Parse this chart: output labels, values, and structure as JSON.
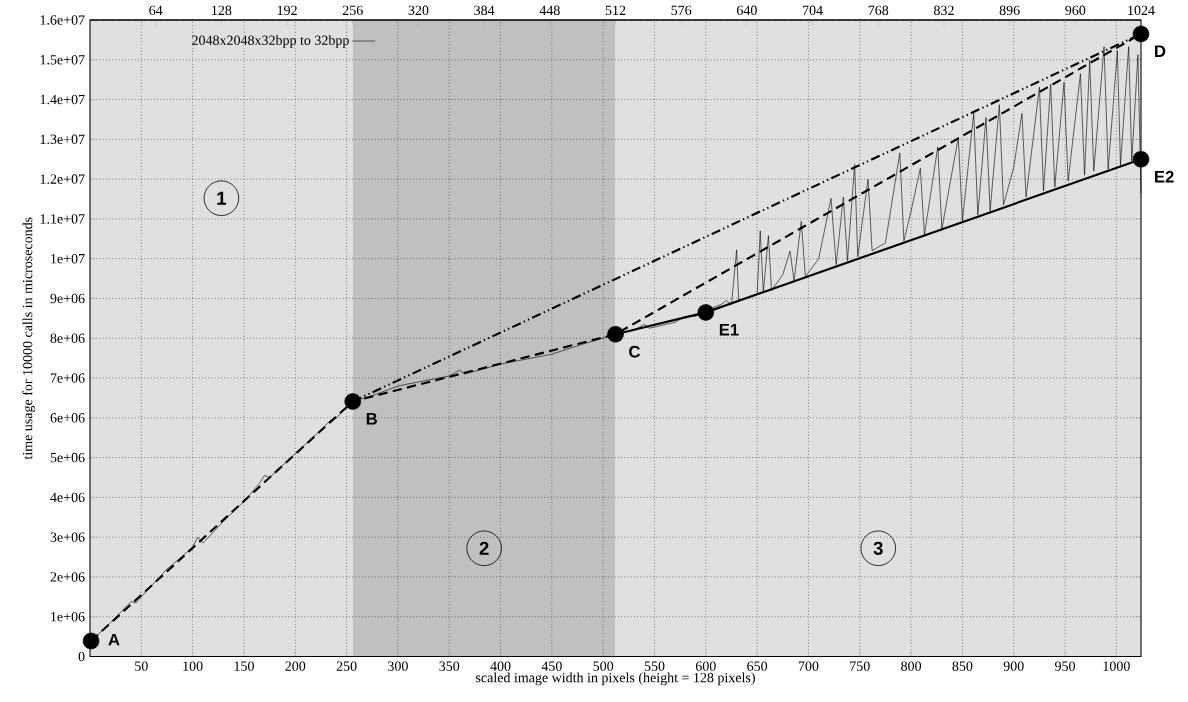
{
  "chart_data": {
    "type": "line",
    "xlabel": "scaled image width in pixels (height = 128 pixels)",
    "ylabel": "time usage for 10000 calls in microseconds",
    "xlim": [
      0,
      1024
    ],
    "xticks": [
      50,
      100,
      150,
      200,
      250,
      300,
      350,
      400,
      450,
      500,
      550,
      600,
      650,
      700,
      750,
      800,
      850,
      900,
      950,
      1000
    ],
    "x2lim": [
      0,
      1024
    ],
    "x2ticks": [
      64,
      128,
      192,
      256,
      320,
      384,
      448,
      512,
      576,
      640,
      704,
      768,
      832,
      896,
      960,
      1024
    ],
    "ylim": [
      0,
      16000000
    ],
    "yticks": [
      0,
      {
        "value": 1000000,
        "label": "1e+06"
      },
      {
        "value": 2000000,
        "label": "2e+06"
      },
      {
        "value": 3000000,
        "label": "3e+06"
      },
      {
        "value": 4000000,
        "label": "4e+06"
      },
      {
        "value": 5000000,
        "label": "5e+06"
      },
      {
        "value": 6000000,
        "label": "6e+06"
      },
      {
        "value": 7000000,
        "label": "7e+06"
      },
      {
        "value": 8000000,
        "label": "8e+06"
      },
      {
        "value": 9000000,
        "label": "9e+06"
      },
      {
        "value": 10000000,
        "label": "1e+07"
      },
      {
        "value": 11000000,
        "label": "1.1e+07"
      },
      {
        "value": 12000000,
        "label": "1.2e+07"
      },
      {
        "value": 13000000,
        "label": "1.3e+07"
      },
      {
        "value": 14000000,
        "label": "1.4e+07"
      },
      {
        "value": 15000000,
        "label": "1.5e+07"
      },
      {
        "value": 16000000,
        "label": "1.6e+07"
      }
    ],
    "grid": true,
    "legend": "top left",
    "bands": [
      {
        "axis": "x",
        "from": 0,
        "to": 256,
        "label": "1",
        "color": "#e0e0e0"
      },
      {
        "axis": "x",
        "from": 256,
        "to": 512,
        "label": "2",
        "color": "#c0c0c0"
      },
      {
        "axis": "x",
        "from": 512,
        "to": 1024,
        "label": "3",
        "color": "#e0e0e0"
      }
    ],
    "series": [
      {
        "name": "2048x2048x32bpp to 32bpp",
        "color": "#000000",
        "line_style": "solid",
        "x": [
          1,
          20,
          35,
          40,
          45,
          50,
          75,
          80,
          100,
          105,
          110,
          130,
          150,
          165,
          170,
          175,
          200,
          225,
          235,
          240,
          256,
          280,
          300,
          320,
          350,
          360,
          365,
          400,
          420,
          450,
          480,
          512,
          530,
          540,
          545,
          570,
          580,
          590,
          600,
          615,
          620,
          625,
          630,
          632,
          650,
          653,
          656,
          661,
          664,
          675,
          682,
          686,
          693,
          697,
          710,
          722,
          727,
          734,
          738,
          745,
          748,
          758,
          762,
          775,
          789,
          793,
          800,
          809,
          813,
          826,
          830,
          846,
          850,
          861,
          865,
          873,
          877,
          886,
          890,
          900,
          908,
          912,
          925,
          929,
          936,
          940,
          949,
          953,
          965,
          969,
          974,
          978,
          988,
          992,
          1001,
          1004,
          1012,
          1015,
          1021,
          1024
        ],
        "values": [
          390000,
          850000,
          1250000,
          1380000,
          1350000,
          1500000,
          2200000,
          2300000,
          2750000,
          3000000,
          2850000,
          3400000,
          3900000,
          4350000,
          4550000,
          4500000,
          5100000,
          5700000,
          5950000,
          6000000,
          6410000,
          6600000,
          6800000,
          6900000,
          7050000,
          7200000,
          7100000,
          7350000,
          7450000,
          7600000,
          7850000,
          8100000,
          8200000,
          8350000,
          8250000,
          8400000,
          8550000,
          8550000,
          8700000,
          8850000,
          8950000,
          8850000,
          10220000,
          8950000,
          9100000,
          10700000,
          9150000,
          10580000,
          9200000,
          9600000,
          10190000,
          9450000,
          10940000,
          9550000,
          10000000,
          11520000,
          9850000,
          11550000,
          9950000,
          12370000,
          10050000,
          12000000,
          10200000,
          10400000,
          12660000,
          10450000,
          11200000,
          12270000,
          10600000,
          12810000,
          10750000,
          13050000,
          10950000,
          13650000,
          11100000,
          13550000,
          11200000,
          13870000,
          11350000,
          12300000,
          13650000,
          11550000,
          14310000,
          11700000,
          14390000,
          11800000,
          14430000,
          11950000,
          14650000,
          12100000,
          14990000,
          12200000,
          15330000,
          12250000,
          15230000,
          12350000,
          15330000,
          12450000,
          15130000,
          11650000
        ]
      },
      {
        "color": "#000000",
        "line_style": "dashed",
        "x": [
          1,
          256,
          512,
          1024
        ],
        "values": [
          390000,
          6410000,
          8100000,
          15650000
        ]
      },
      {
        "color": "#000000",
        "line_style": "dashdotdotted",
        "x": [
          256,
          1024
        ],
        "values": [
          6410000,
          15650000
        ]
      },
      {
        "color": "#000000",
        "line_style": "solid",
        "x": [
          512,
          600,
          1024
        ],
        "values": [
          8100000,
          8650000,
          12500000
        ]
      },
      {
        "type": "scatter",
        "color": "#000000",
        "marker": "circle",
        "x": [
          1,
          256,
          512,
          1024,
          600,
          1024
        ],
        "values": [
          390000,
          6410000,
          8100000,
          15650000,
          8650000,
          12500000
        ]
      }
    ],
    "annotations": [
      {
        "text": "A",
        "x": 1,
        "y": 390000
      },
      {
        "text": "B",
        "x": 256,
        "y": 6410000
      },
      {
        "text": "C",
        "x": 512,
        "y": 8100000
      },
      {
        "text": "D",
        "x": 1024,
        "y": 15650000
      },
      {
        "text": "E1",
        "x": 600,
        "y": 8650000
      },
      {
        "text": "E2",
        "x": 1024,
        "y": 12500000
      }
    ]
  }
}
